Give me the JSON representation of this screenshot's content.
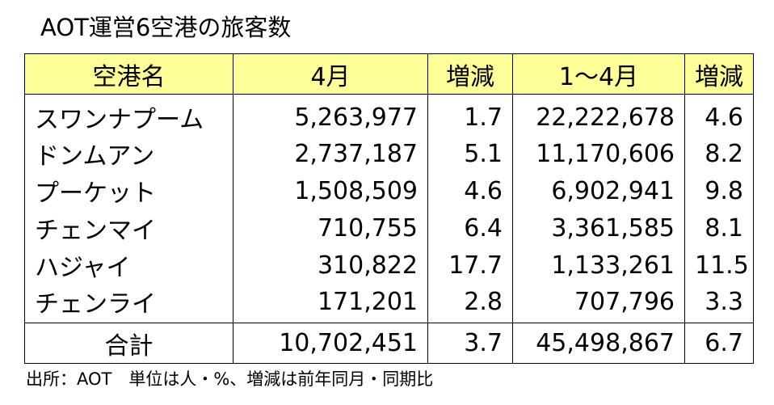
{
  "title": "AOT運営6空港の旅客数",
  "colors": {
    "header_background": "#ffff99",
    "border": "#000000",
    "text": "#000000"
  },
  "table": {
    "headers": [
      "空港名",
      "4月",
      "増減",
      "1～4月",
      "増減"
    ],
    "rows": [
      {
        "airport": "スワンナプーム",
        "april": "5,263,977",
        "april_change": "1.7",
        "jan_apr": "22,222,678",
        "jan_apr_change": "4.6"
      },
      {
        "airport": "ドンムアン",
        "april": "2,737,187",
        "april_change": "5.1",
        "jan_apr": "11,170,606",
        "jan_apr_change": "8.2"
      },
      {
        "airport": "プーケット",
        "april": "1,508,509",
        "april_change": "4.6",
        "jan_apr": "6,902,941",
        "jan_apr_change": "9.8"
      },
      {
        "airport": "チェンマイ",
        "april": "710,755",
        "april_change": "6.4",
        "jan_apr": "3,361,585",
        "jan_apr_change": "8.1"
      },
      {
        "airport": "ハジャイ",
        "april": "310,822",
        "april_change": "17.7",
        "jan_apr": "1,133,261",
        "jan_apr_change": "11.5"
      },
      {
        "airport": "チェンライ",
        "april": "171,201",
        "april_change": "2.8",
        "jan_apr": "707,796",
        "jan_apr_change": "3.3"
      }
    ],
    "total": {
      "label": "合計",
      "april": "10,702,451",
      "april_change": "3.7",
      "jan_apr": "45,498,867",
      "jan_apr_change": "6.7"
    }
  },
  "note": "出所：AOT　単位は人・%、増減は前年同月・同期比"
}
